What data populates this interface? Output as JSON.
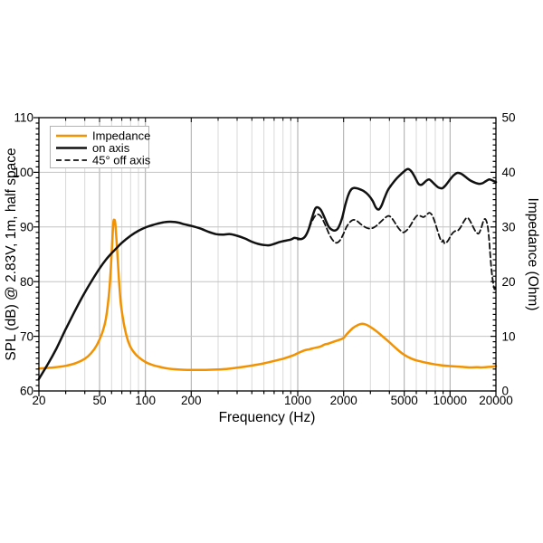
{
  "page": {
    "background": "#ffffff"
  },
  "colors": {
    "impedance": "#f29200",
    "trace": "#111111",
    "grid_minor": "#d9d9d9",
    "grid_labeled": "#a8a8a8",
    "grid_horizontal": "#c3c3c3",
    "frame": "#000000",
    "legend_border": "#b3b3b3"
  },
  "chart_data": {
    "type": "line",
    "title": "",
    "xlabel": "Frequency (Hz)",
    "ylabel_left": "SPL (dB) @ 2.83V, 1m, half space",
    "ylabel_right": "Impedance (Ohm)",
    "x_axis": {
      "scale": "log",
      "min": 20,
      "max": 20000,
      "labeled_ticks": [
        20,
        50,
        100,
        200,
        1000,
        2000,
        5000,
        10000,
        20000
      ],
      "minor_ticks": [
        30,
        40,
        60,
        70,
        80,
        90,
        300,
        400,
        500,
        600,
        700,
        800,
        900,
        3000,
        4000,
        6000,
        7000,
        8000,
        9000
      ]
    },
    "y_left": {
      "min": 60,
      "max": 110,
      "major_step": 10,
      "minor_step": 1,
      "labels": [
        60,
        70,
        80,
        90,
        100,
        110
      ]
    },
    "y_right": {
      "min": 0,
      "max": 50,
      "major_step": 10,
      "minor_step": 1,
      "labels": [
        0,
        10,
        20,
        30,
        40,
        50
      ]
    },
    "grid": {
      "horizontal": [
        70,
        80,
        90,
        100
      ]
    },
    "legend": {
      "position": "top-left",
      "items": [
        {
          "label": "Impedance",
          "color": "#f29200",
          "style": "solid"
        },
        {
          "label": "on axis",
          "color": "#111111",
          "style": "solid"
        },
        {
          "label": "45° off axis",
          "color": "#111111",
          "style": "dashed"
        }
      ]
    },
    "series": [
      {
        "name": "Impedance",
        "axis": "right",
        "unit": "Ohm",
        "color": "#f29200",
        "style": "solid",
        "points": [
          [
            20,
            4.1
          ],
          [
            25,
            4.3
          ],
          [
            30,
            4.6
          ],
          [
            35,
            5.1
          ],
          [
            40,
            5.9
          ],
          [
            44,
            6.9
          ],
          [
            48,
            8.4
          ],
          [
            52,
            10.6
          ],
          [
            55,
            13.2
          ],
          [
            58,
            18.5
          ],
          [
            60,
            25.0
          ],
          [
            61.5,
            30.5
          ],
          [
            62.5,
            31.3
          ],
          [
            63.5,
            30.5
          ],
          [
            65,
            26.5
          ],
          [
            67,
            20.5
          ],
          [
            69,
            16.0
          ],
          [
            72,
            12.5
          ],
          [
            76,
            9.6
          ],
          [
            80,
            8.0
          ],
          [
            85,
            6.9
          ],
          [
            90,
            6.2
          ],
          [
            100,
            5.3
          ],
          [
            110,
            4.8
          ],
          [
            120,
            4.5
          ],
          [
            140,
            4.1
          ],
          [
            160,
            3.95
          ],
          [
            180,
            3.88
          ],
          [
            200,
            3.85
          ],
          [
            250,
            3.85
          ],
          [
            300,
            3.92
          ],
          [
            350,
            4.05
          ],
          [
            400,
            4.25
          ],
          [
            450,
            4.45
          ],
          [
            500,
            4.65
          ],
          [
            600,
            5.05
          ],
          [
            700,
            5.5
          ],
          [
            800,
            5.9
          ],
          [
            900,
            6.35
          ],
          [
            950,
            6.6
          ],
          [
            1000,
            6.9
          ],
          [
            1100,
            7.4
          ],
          [
            1200,
            7.65
          ],
          [
            1300,
            7.9
          ],
          [
            1400,
            8.1
          ],
          [
            1500,
            8.5
          ],
          [
            1600,
            8.7
          ],
          [
            1800,
            9.2
          ],
          [
            1900,
            9.4
          ],
          [
            2000,
            9.7
          ],
          [
            2100,
            10.4
          ],
          [
            2300,
            11.5
          ],
          [
            2500,
            12.1
          ],
          [
            2650,
            12.3
          ],
          [
            2800,
            12.15
          ],
          [
            3000,
            11.7
          ],
          [
            3300,
            10.9
          ],
          [
            3600,
            10.0
          ],
          [
            4000,
            8.9
          ],
          [
            4500,
            7.6
          ],
          [
            5000,
            6.6
          ],
          [
            5500,
            6.0
          ],
          [
            6000,
            5.6
          ],
          [
            7000,
            5.15
          ],
          [
            8000,
            4.85
          ],
          [
            9000,
            4.65
          ],
          [
            10000,
            4.55
          ],
          [
            12000,
            4.4
          ],
          [
            13500,
            4.3
          ],
          [
            15000,
            4.35
          ],
          [
            16000,
            4.3
          ],
          [
            17000,
            4.35
          ],
          [
            18000,
            4.4
          ],
          [
            19000,
            4.45
          ],
          [
            20000,
            4.55
          ]
        ]
      },
      {
        "name": "on axis",
        "axis": "left",
        "unit": "dB",
        "color": "#111111",
        "style": "solid",
        "points": [
          [
            20,
            62.2
          ],
          [
            23,
            65.0
          ],
          [
            26,
            67.7
          ],
          [
            30,
            71.3
          ],
          [
            35,
            75.0
          ],
          [
            40,
            78.0
          ],
          [
            45,
            80.4
          ],
          [
            50,
            82.4
          ],
          [
            55,
            84.0
          ],
          [
            60,
            85.2
          ],
          [
            65,
            86.2
          ],
          [
            70,
            87.1
          ],
          [
            80,
            88.4
          ],
          [
            90,
            89.3
          ],
          [
            100,
            89.9
          ],
          [
            110,
            90.3
          ],
          [
            120,
            90.6
          ],
          [
            135,
            90.9
          ],
          [
            150,
            90.95
          ],
          [
            165,
            90.8
          ],
          [
            180,
            90.5
          ],
          [
            200,
            90.2
          ],
          [
            230,
            89.7
          ],
          [
            260,
            89.1
          ],
          [
            290,
            88.7
          ],
          [
            320,
            88.6
          ],
          [
            360,
            88.7
          ],
          [
            400,
            88.4
          ],
          [
            450,
            87.9
          ],
          [
            500,
            87.3
          ],
          [
            550,
            86.9
          ],
          [
            600,
            86.7
          ],
          [
            650,
            86.65
          ],
          [
            700,
            86.9
          ],
          [
            750,
            87.2
          ],
          [
            800,
            87.4
          ],
          [
            900,
            87.7
          ],
          [
            950,
            88.0
          ],
          [
            1000,
            87.9
          ],
          [
            1060,
            87.8
          ],
          [
            1120,
            88.3
          ],
          [
            1180,
            89.6
          ],
          [
            1240,
            91.6
          ],
          [
            1300,
            93.3
          ],
          [
            1350,
            93.6
          ],
          [
            1420,
            93.1
          ],
          [
            1500,
            91.7
          ],
          [
            1600,
            90.0
          ],
          [
            1700,
            89.4
          ],
          [
            1780,
            89.4
          ],
          [
            1850,
            89.9
          ],
          [
            1950,
            91.5
          ],
          [
            2050,
            94.0
          ],
          [
            2150,
            95.9
          ],
          [
            2250,
            96.9
          ],
          [
            2350,
            97.15
          ],
          [
            2500,
            97.0
          ],
          [
            2700,
            96.6
          ],
          [
            2900,
            95.9
          ],
          [
            3100,
            94.8
          ],
          [
            3250,
            93.6
          ],
          [
            3400,
            93.2
          ],
          [
            3550,
            93.9
          ],
          [
            3700,
            95.2
          ],
          [
            3900,
            96.7
          ],
          [
            4100,
            97.6
          ],
          [
            4400,
            98.7
          ],
          [
            4700,
            99.5
          ],
          [
            5000,
            100.2
          ],
          [
            5300,
            100.6
          ],
          [
            5600,
            100.1
          ],
          [
            5900,
            99.0
          ],
          [
            6200,
            97.9
          ],
          [
            6450,
            97.7
          ],
          [
            6700,
            98.0
          ],
          [
            7000,
            98.5
          ],
          [
            7300,
            98.7
          ],
          [
            7600,
            98.3
          ],
          [
            8000,
            97.7
          ],
          [
            8400,
            97.2
          ],
          [
            8900,
            97.1
          ],
          [
            9400,
            97.7
          ],
          [
            10000,
            98.7
          ],
          [
            10600,
            99.5
          ],
          [
            11200,
            99.9
          ],
          [
            11900,
            99.7
          ],
          [
            12700,
            99.1
          ],
          [
            13600,
            98.5
          ],
          [
            14600,
            98.1
          ],
          [
            15500,
            97.9
          ],
          [
            16300,
            98.0
          ],
          [
            17200,
            98.4
          ],
          [
            18100,
            98.7
          ],
          [
            19000,
            98.5
          ],
          [
            20000,
            98.2
          ]
        ]
      },
      {
        "name": "45° off axis",
        "axis": "left",
        "unit": "dB",
        "color": "#111111",
        "style": "dashed",
        "points": [
          [
            1000,
            87.7
          ],
          [
            1080,
            87.9
          ],
          [
            1150,
            88.9
          ],
          [
            1230,
            90.8
          ],
          [
            1300,
            92.0
          ],
          [
            1360,
            92.3
          ],
          [
            1430,
            91.8
          ],
          [
            1520,
            90.3
          ],
          [
            1620,
            88.5
          ],
          [
            1720,
            87.4
          ],
          [
            1800,
            87.1
          ],
          [
            1900,
            87.6
          ],
          [
            2000,
            88.8
          ],
          [
            2100,
            90.1
          ],
          [
            2220,
            91.0
          ],
          [
            2330,
            91.3
          ],
          [
            2450,
            91.1
          ],
          [
            2600,
            90.5
          ],
          [
            2800,
            89.9
          ],
          [
            3000,
            89.7
          ],
          [
            3200,
            90.0
          ],
          [
            3400,
            90.6
          ],
          [
            3650,
            91.4
          ],
          [
            3900,
            92.0
          ],
          [
            4050,
            91.9
          ],
          [
            4250,
            91.2
          ],
          [
            4500,
            90.1
          ],
          [
            4750,
            89.3
          ],
          [
            4950,
            89.0
          ],
          [
            5200,
            89.4
          ],
          [
            5500,
            90.3
          ],
          [
            5800,
            91.4
          ],
          [
            6100,
            92.1
          ],
          [
            6400,
            92.0
          ],
          [
            6700,
            91.8
          ],
          [
            7000,
            92.2
          ],
          [
            7300,
            92.6
          ],
          [
            7600,
            92.2
          ],
          [
            7900,
            91.1
          ],
          [
            8200,
            89.7
          ],
          [
            8500,
            88.3
          ],
          [
            8800,
            87.3
          ],
          [
            9000,
            87.6
          ],
          [
            9200,
            87.0
          ],
          [
            9500,
            87.2
          ],
          [
            9800,
            87.7
          ],
          [
            10200,
            88.6
          ],
          [
            10700,
            89.2
          ],
          [
            11200,
            89.3
          ],
          [
            11700,
            89.9
          ],
          [
            12300,
            91.0
          ],
          [
            12900,
            91.7
          ],
          [
            13400,
            91.3
          ],
          [
            14000,
            90.3
          ],
          [
            14700,
            89.2
          ],
          [
            15400,
            88.8
          ],
          [
            16000,
            89.8
          ],
          [
            16600,
            91.2
          ],
          [
            17100,
            91.4
          ],
          [
            17600,
            90.3
          ],
          [
            18000,
            88.0
          ],
          [
            18400,
            84.5
          ],
          [
            18800,
            81.5
          ],
          [
            19300,
            79.3
          ],
          [
            19600,
            78.6
          ],
          [
            20000,
            79.2
          ]
        ]
      }
    ]
  }
}
